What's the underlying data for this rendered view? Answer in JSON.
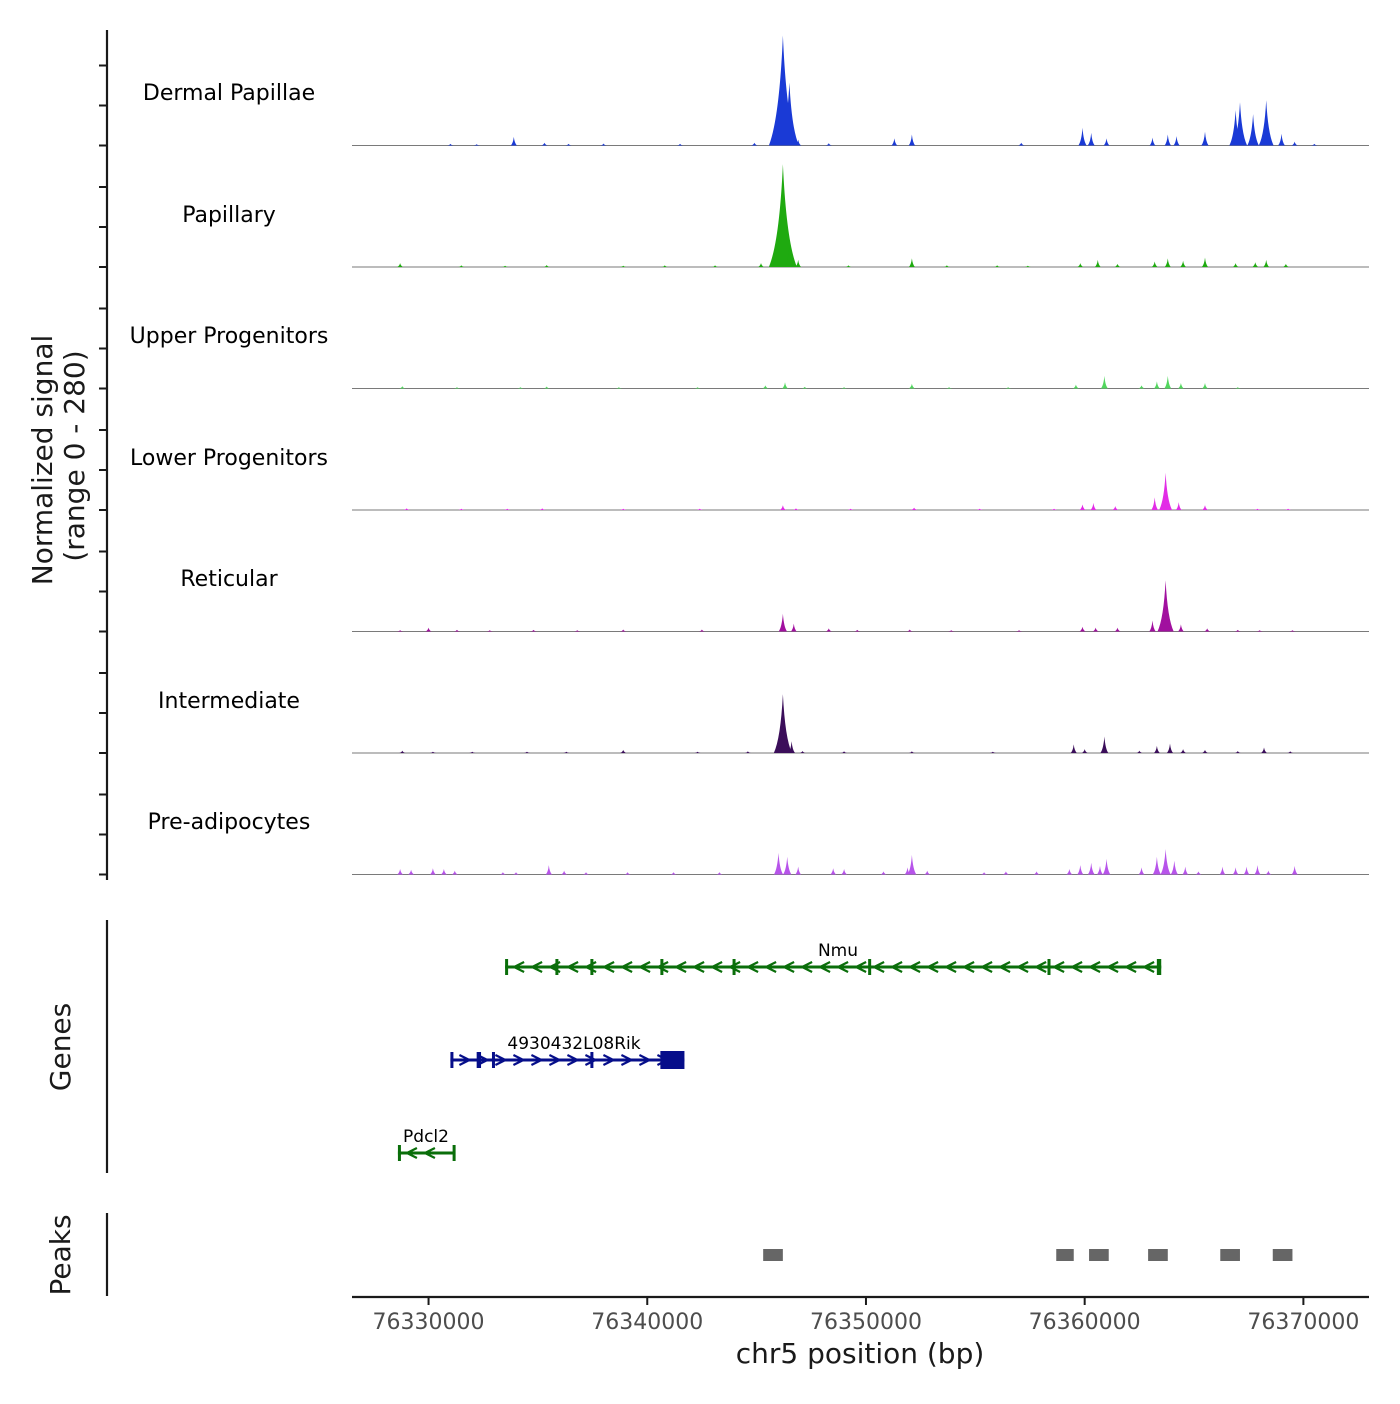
{
  "chart_data": {
    "type": "area",
    "chromosome": "chr5",
    "xlabel": "chr5 position (bp)",
    "x_range": [
      76326500,
      76373000
    ],
    "x_ticks": [
      76330000,
      76340000,
      76350000,
      76360000,
      76370000
    ],
    "x_tick_labels": [
      "76330000",
      "76340000",
      "76350000",
      "76360000",
      "76370000"
    ],
    "signal_axis_label": [
      "Normalized signal",
      "(range 0 - 280)"
    ],
    "signal_range": [
      0,
      280
    ],
    "tracks": [
      {
        "name": "Dermal Papillae",
        "color": "#1a3ad6",
        "peaks": [
          [
            76331000,
            4
          ],
          [
            76332200,
            3
          ],
          [
            76333900,
            22
          ],
          [
            76335300,
            7
          ],
          [
            76336400,
            4
          ],
          [
            76338000,
            5
          ],
          [
            76341500,
            4
          ],
          [
            76344900,
            7
          ],
          [
            76346200,
            280
          ],
          [
            76346500,
            160
          ],
          [
            76346900,
            15
          ],
          [
            76348300,
            6
          ],
          [
            76351300,
            18
          ],
          [
            76352100,
            28
          ],
          [
            76357100,
            7
          ],
          [
            76359900,
            45
          ],
          [
            76360300,
            32
          ],
          [
            76361000,
            18
          ],
          [
            76363100,
            20
          ],
          [
            76363800,
            28
          ],
          [
            76364200,
            24
          ],
          [
            76365500,
            35
          ],
          [
            76366900,
            90
          ],
          [
            76367100,
            110
          ],
          [
            76367700,
            80
          ],
          [
            76368300,
            115
          ],
          [
            76369000,
            30
          ],
          [
            76369600,
            10
          ],
          [
            76370500,
            4
          ]
        ]
      },
      {
        "name": "Papillary",
        "color": "#1faa10",
        "peaks": [
          [
            76328700,
            10
          ],
          [
            76331500,
            4
          ],
          [
            76333500,
            3
          ],
          [
            76335400,
            5
          ],
          [
            76338900,
            3
          ],
          [
            76340800,
            4
          ],
          [
            76343100,
            4
          ],
          [
            76345200,
            10
          ],
          [
            76346200,
            262
          ],
          [
            76346500,
            55
          ],
          [
            76346900,
            18
          ],
          [
            76349200,
            4
          ],
          [
            76352100,
            22
          ],
          [
            76353700,
            4
          ],
          [
            76356000,
            4
          ],
          [
            76357400,
            3
          ],
          [
            76359800,
            10
          ],
          [
            76360600,
            18
          ],
          [
            76361500,
            8
          ],
          [
            76363200,
            14
          ],
          [
            76363800,
            22
          ],
          [
            76364500,
            16
          ],
          [
            76365500,
            24
          ],
          [
            76366900,
            10
          ],
          [
            76367800,
            12
          ],
          [
            76368300,
            18
          ],
          [
            76369200,
            8
          ]
        ]
      },
      {
        "name": "Upper Progenitors",
        "color": "#52d65e",
        "peaks": [
          [
            76328800,
            6
          ],
          [
            76331300,
            3
          ],
          [
            76334200,
            3
          ],
          [
            76335400,
            5
          ],
          [
            76338700,
            3
          ],
          [
            76342300,
            3
          ],
          [
            76345400,
            8
          ],
          [
            76346300,
            16
          ],
          [
            76347200,
            4
          ],
          [
            76349000,
            3
          ],
          [
            76352100,
            12
          ],
          [
            76353800,
            3
          ],
          [
            76356500,
            3
          ],
          [
            76359600,
            10
          ],
          [
            76360900,
            32
          ],
          [
            76362600,
            8
          ],
          [
            76363300,
            18
          ],
          [
            76363800,
            32
          ],
          [
            76364400,
            14
          ],
          [
            76365500,
            14
          ],
          [
            76367000,
            3
          ]
        ]
      },
      {
        "name": "Lower Progenitors",
        "color": "#e22ce6",
        "peaks": [
          [
            76329000,
            4
          ],
          [
            76331500,
            3
          ],
          [
            76333600,
            3
          ],
          [
            76335200,
            4
          ],
          [
            76338900,
            3
          ],
          [
            76342400,
            3
          ],
          [
            76346200,
            12
          ],
          [
            76346800,
            4
          ],
          [
            76349300,
            3
          ],
          [
            76352200,
            6
          ],
          [
            76355200,
            3
          ],
          [
            76358600,
            3
          ],
          [
            76359900,
            14
          ],
          [
            76360400,
            18
          ],
          [
            76361400,
            10
          ],
          [
            76363200,
            32
          ],
          [
            76363700,
            95
          ],
          [
            76364300,
            20
          ],
          [
            76365500,
            12
          ],
          [
            76367900,
            3
          ],
          [
            76369300,
            3
          ]
        ]
      },
      {
        "name": "Reticular",
        "color": "#a1109f",
        "peaks": [
          [
            76328700,
            3
          ],
          [
            76330000,
            10
          ],
          [
            76331300,
            4
          ],
          [
            76332800,
            3
          ],
          [
            76334800,
            4
          ],
          [
            76336800,
            3
          ],
          [
            76338900,
            5
          ],
          [
            76342500,
            5
          ],
          [
            76346200,
            45
          ],
          [
            76346700,
            20
          ],
          [
            76348300,
            8
          ],
          [
            76349600,
            4
          ],
          [
            76352000,
            5
          ],
          [
            76353900,
            3
          ],
          [
            76357000,
            3
          ],
          [
            76359900,
            12
          ],
          [
            76360500,
            10
          ],
          [
            76361500,
            10
          ],
          [
            76363100,
            28
          ],
          [
            76363700,
            130
          ],
          [
            76364400,
            18
          ],
          [
            76365600,
            8
          ],
          [
            76367000,
            4
          ],
          [
            76368000,
            3
          ],
          [
            76369500,
            3
          ]
        ]
      },
      {
        "name": "Intermediate",
        "color": "#3b0e5a",
        "peaks": [
          [
            76328800,
            6
          ],
          [
            76330200,
            3
          ],
          [
            76332000,
            3
          ],
          [
            76334500,
            3
          ],
          [
            76336300,
            3
          ],
          [
            76338900,
            8
          ],
          [
            76342300,
            3
          ],
          [
            76344600,
            4
          ],
          [
            76346200,
            150
          ],
          [
            76346600,
            30
          ],
          [
            76347100,
            5
          ],
          [
            76349000,
            4
          ],
          [
            76352100,
            4
          ],
          [
            76355800,
            3
          ],
          [
            76359500,
            22
          ],
          [
            76360000,
            10
          ],
          [
            76360900,
            42
          ],
          [
            76362500,
            6
          ],
          [
            76363300,
            18
          ],
          [
            76363900,
            24
          ],
          [
            76364500,
            10
          ],
          [
            76365500,
            8
          ],
          [
            76367000,
            5
          ],
          [
            76368200,
            14
          ],
          [
            76369400,
            4
          ]
        ]
      },
      {
        "name": "Pre-adipocytes",
        "color": "#b754ea",
        "peaks": [
          [
            76328700,
            14
          ],
          [
            76329200,
            12
          ],
          [
            76330200,
            16
          ],
          [
            76330700,
            14
          ],
          [
            76331200,
            10
          ],
          [
            76333400,
            6
          ],
          [
            76334000,
            6
          ],
          [
            76335500,
            24
          ],
          [
            76336200,
            10
          ],
          [
            76337200,
            6
          ],
          [
            76339100,
            6
          ],
          [
            76341200,
            6
          ],
          [
            76343300,
            6
          ],
          [
            76346000,
            55
          ],
          [
            76346400,
            45
          ],
          [
            76346900,
            20
          ],
          [
            76348500,
            16
          ],
          [
            76349000,
            14
          ],
          [
            76350800,
            8
          ],
          [
            76351900,
            18
          ],
          [
            76352100,
            50
          ],
          [
            76352800,
            10
          ],
          [
            76355400,
            6
          ],
          [
            76356400,
            8
          ],
          [
            76357800,
            8
          ],
          [
            76359300,
            14
          ],
          [
            76359800,
            24
          ],
          [
            76360300,
            30
          ],
          [
            76360700,
            22
          ],
          [
            76361000,
            40
          ],
          [
            76362600,
            18
          ],
          [
            76363300,
            45
          ],
          [
            76363700,
            65
          ],
          [
            76364100,
            35
          ],
          [
            76364600,
            20
          ],
          [
            76365200,
            8
          ],
          [
            76366300,
            20
          ],
          [
            76366900,
            18
          ],
          [
            76367400,
            20
          ],
          [
            76367900,
            24
          ],
          [
            76368400,
            10
          ],
          [
            76369600,
            22
          ]
        ]
      }
    ],
    "genes": [
      {
        "name": "Nmu",
        "strand": "-",
        "start": 76333500,
        "end": 76363500,
        "color": "#0a6e0a",
        "exons": [
          [
            76333500,
            76333620
          ],
          [
            76335800,
            76335850
          ],
          [
            76337400,
            76337450
          ],
          [
            76340600,
            76340650
          ],
          [
            76343900,
            76344020
          ],
          [
            76350100,
            76350150
          ],
          [
            76358300,
            76358350
          ],
          [
            76363300,
            76363500
          ]
        ]
      },
      {
        "name": "4930432L08Rik",
        "strand": "+",
        "start": 76331000,
        "end": 76341700,
        "color": "#060e8a",
        "exons": [
          [
            76331000,
            76331100
          ],
          [
            76332200,
            76332400
          ],
          [
            76332900,
            76333000
          ],
          [
            76337400,
            76337450
          ],
          [
            76340600,
            76341700
          ]
        ]
      },
      {
        "name": "Pdcl2",
        "strand": "-",
        "start": 76328600,
        "end": 76331200,
        "color": "#0a6e0a",
        "exons": [
          [
            76328600,
            76328700
          ],
          [
            76331100,
            76331200
          ]
        ]
      }
    ],
    "genes_label": "Genes",
    "peaks_label": "Peaks",
    "peak_regions": [
      [
        76345300,
        76346200
      ],
      [
        76358700,
        76359500
      ],
      [
        76360200,
        76361100
      ],
      [
        76362900,
        76363800
      ],
      [
        76366200,
        76367100
      ],
      [
        76368600,
        76369500
      ]
    ],
    "peak_color": "#666666",
    "line_color": "#1a1a1a"
  }
}
